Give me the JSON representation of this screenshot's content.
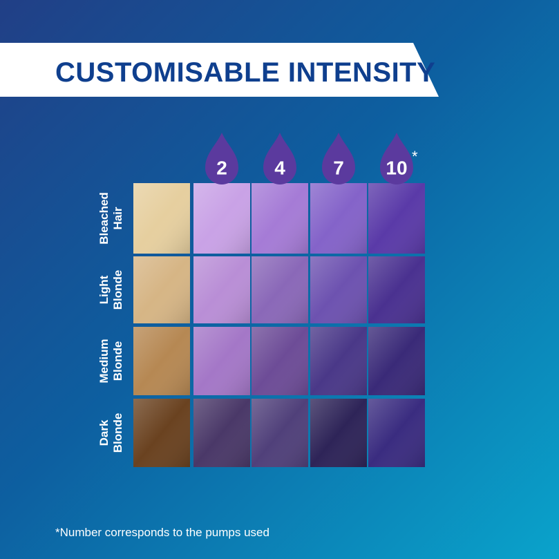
{
  "header": {
    "title": "CUSTOMISABLE INTENSITY"
  },
  "columns": [
    2,
    4,
    7,
    10
  ],
  "note_marker": "*",
  "rows": [
    [
      "Bleached",
      "Hair"
    ],
    [
      "Light",
      "Blonde"
    ],
    [
      "Medium",
      "Blonde"
    ],
    [
      "Dark",
      "Blonde"
    ]
  ],
  "footnote": "*Number corresponds to the pumps used"
}
